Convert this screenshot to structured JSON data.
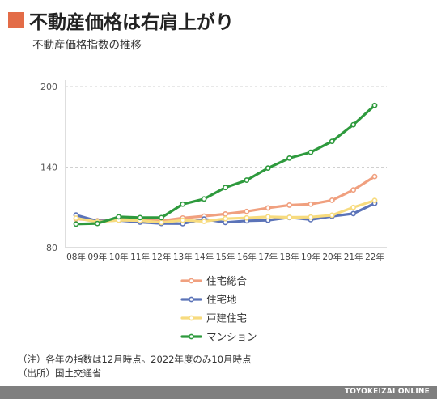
{
  "header": {
    "title": "不動産価格は右肩上がり",
    "accent_color": "#e36c47"
  },
  "chart_data": {
    "type": "line",
    "title": "",
    "subtitle": "不動産価格指数の推移",
    "xlabel": "",
    "ylabel": "",
    "categories": [
      "08年",
      "09年",
      "10年",
      "11年",
      "12年",
      "13年",
      "14年",
      "15年",
      "16年",
      "17年",
      "18年",
      "19年",
      "20年",
      "21年",
      "22年"
    ],
    "yticks": [
      80,
      140,
      200
    ],
    "ylim": [
      80,
      200
    ],
    "grid": true,
    "legend_position": "bottom",
    "series": [
      {
        "name": "住宅総合",
        "color": "#f0a07f",
        "values": [
          101.5,
          100.0,
          101.2,
          100.4,
          100.0,
          102.1,
          103.5,
          105.1,
          107.0,
          109.6,
          111.7,
          112.4,
          115.3,
          123.0,
          133.0
        ]
      },
      {
        "name": "住宅地",
        "color": "#5b73b8",
        "values": [
          104.3,
          99.8,
          100.3,
          99.0,
          98.0,
          97.9,
          101.3,
          98.8,
          100.0,
          100.4,
          102.5,
          100.9,
          103.4,
          105.4,
          113.0
        ]
      },
      {
        "name": "戸建住宅",
        "color": "#f7db7e",
        "values": [
          102.0,
          99.2,
          100.4,
          100.2,
          98.8,
          100.4,
          99.6,
          101.6,
          102.2,
          103.0,
          102.6,
          102.8,
          104.2,
          110.0,
          115.2
        ]
      },
      {
        "name": "マンション",
        "color": "#2e9a3d",
        "values": [
          97.6,
          98.0,
          103.0,
          102.4,
          102.4,
          112.4,
          116.3,
          124.8,
          130.3,
          139.3,
          146.7,
          151.1,
          159.2,
          171.6,
          186.0
        ]
      }
    ]
  },
  "notes": [
    "（注）各年の指数は12月時点。2022年度のみ10月時点",
    "（出所）国土交通省"
  ],
  "footer": {
    "brand": "TOYOKEIZAI ONLINE"
  }
}
